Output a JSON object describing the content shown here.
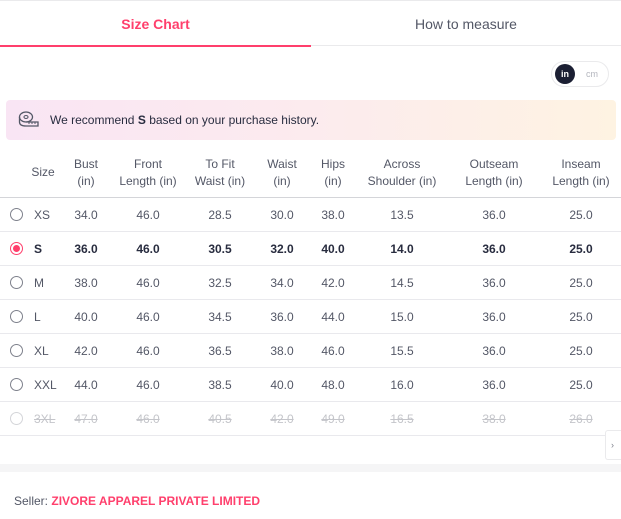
{
  "tabs": {
    "size_chart": "Size Chart",
    "how_to_measure": "How to measure"
  },
  "units": {
    "inch": "in",
    "cm": "cm",
    "selected": "in"
  },
  "recommendation": {
    "prefix": "We recommend",
    "size": "S",
    "suffix": "based on your purchase history."
  },
  "table": {
    "headers": [
      {
        "line1": "Size",
        "line2": ""
      },
      {
        "line1": "Bust",
        "line2": "(in)"
      },
      {
        "line1": "Front",
        "line2": "Length (in)"
      },
      {
        "line1": "To Fit",
        "line2": "Waist (in)"
      },
      {
        "line1": "Waist",
        "line2": "(in)"
      },
      {
        "line1": "Hips",
        "line2": "(in)"
      },
      {
        "line1": "Across",
        "line2": "Shoulder (in)"
      },
      {
        "line1": "Outseam",
        "line2": "Length (in)"
      },
      {
        "line1": "Inseam",
        "line2": "Length (in)"
      }
    ],
    "rows": [
      {
        "size": "XS",
        "bust": "34.0",
        "front_length": "46.0",
        "to_fit_waist": "28.5",
        "waist": "30.0",
        "hips": "38.0",
        "across_shoulder": "13.5",
        "outseam_length": "36.0",
        "inseam_length": "25.0"
      },
      {
        "size": "S",
        "bust": "36.0",
        "front_length": "46.0",
        "to_fit_waist": "30.5",
        "waist": "32.0",
        "hips": "40.0",
        "across_shoulder": "14.0",
        "outseam_length": "36.0",
        "inseam_length": "25.0"
      },
      {
        "size": "M",
        "bust": "38.0",
        "front_length": "46.0",
        "to_fit_waist": "32.5",
        "waist": "34.0",
        "hips": "42.0",
        "across_shoulder": "14.5",
        "outseam_length": "36.0",
        "inseam_length": "25.0"
      },
      {
        "size": "L",
        "bust": "40.0",
        "front_length": "46.0",
        "to_fit_waist": "34.5",
        "waist": "36.0",
        "hips": "44.0",
        "across_shoulder": "15.0",
        "outseam_length": "36.0",
        "inseam_length": "25.0"
      },
      {
        "size": "XL",
        "bust": "42.0",
        "front_length": "46.0",
        "to_fit_waist": "36.5",
        "waist": "38.0",
        "hips": "46.0",
        "across_shoulder": "15.5",
        "outseam_length": "36.0",
        "inseam_length": "25.0"
      },
      {
        "size": "XXL",
        "bust": "44.0",
        "front_length": "46.0",
        "to_fit_waist": "38.5",
        "waist": "40.0",
        "hips": "48.0",
        "across_shoulder": "16.0",
        "outseam_length": "36.0",
        "inseam_length": "25.0"
      },
      {
        "size": "3XL",
        "bust": "47.0",
        "front_length": "46.0",
        "to_fit_waist": "40.5",
        "waist": "42.0",
        "hips": "49.0",
        "across_shoulder": "16.5",
        "outseam_length": "38.0",
        "inseam_length": "26.0"
      }
    ],
    "selected_size": "S",
    "disabled_sizes": [
      "3XL"
    ]
  },
  "seller": {
    "label": "Seller:",
    "name": "ZIVORE APPAREL PRIVATE LIMITED"
  },
  "colors": {
    "accent": "#ff3f6c",
    "text": "#282c3f",
    "muted": "#535766"
  }
}
